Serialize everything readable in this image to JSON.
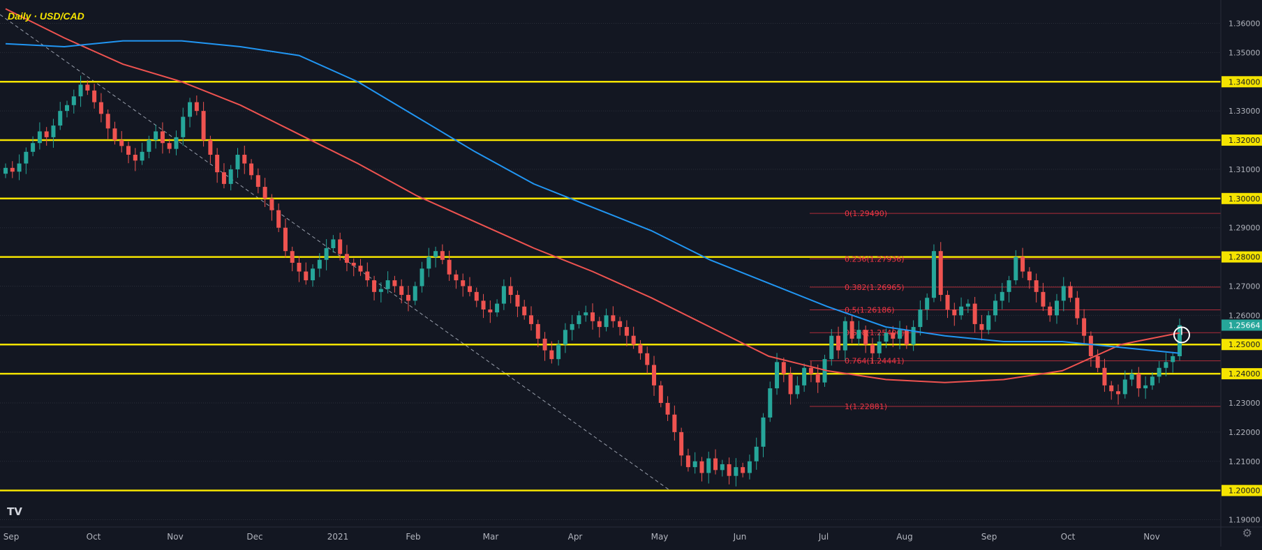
{
  "chart_title": "Daily · USD/CAD",
  "logo": "TV",
  "settings_icon": "gear-icon",
  "colors": {
    "background": "#131722",
    "up": "#26a69a",
    "down": "#ef5350",
    "ma_red": "#ef5350",
    "ma_blue": "#2196f3",
    "yellow": "#f5e400",
    "fib": "#f23645",
    "axis_text": "#b2b5be"
  },
  "chart_data": {
    "type": "candlestick",
    "title": "Daily · USD/CAD",
    "x_tick_labels": [
      "Sep",
      "Oct",
      "Nov",
      "Dec",
      "2021",
      "Feb",
      "Mar",
      "Apr",
      "May",
      "Jun",
      "Jul",
      "Aug",
      "Sep",
      "Oct",
      "Nov"
    ],
    "y_tick_labels": [
      "1.36000",
      "1.35000",
      "1.34000",
      "1.33000",
      "1.32000",
      "1.31000",
      "1.30000",
      "1.29000",
      "1.28000",
      "1.27000",
      "1.26000",
      "1.25000",
      "1.24000",
      "1.23000",
      "1.22000",
      "1.21000",
      "1.20000",
      "1.19000"
    ],
    "ylim": [
      1.1875,
      1.368
    ],
    "current_price": "1.25664",
    "major_levels": [
      1.34,
      1.32,
      1.3,
      1.28,
      1.25,
      1.24,
      1.2
    ],
    "fibonacci": [
      {
        "label": "0(1.29490)",
        "value": 1.2949
      },
      {
        "label": "0.236(1.27936)",
        "value": 1.27936
      },
      {
        "label": "0.382(1.26965)",
        "value": 1.26965
      },
      {
        "label": "0.5(1.26186)",
        "value": 1.26186
      },
      {
        "label": "0.618(1.25406)",
        "value": 1.25406
      },
      {
        "label": "0.764(1.24441)",
        "value": 1.24441
      },
      {
        "label": "1(1.22881)",
        "value": 1.22881
      }
    ],
    "moving_averages": [
      {
        "color": "red",
        "values": [
          1.365,
          1.355,
          1.346,
          1.34,
          1.332,
          1.322,
          1.312,
          1.301,
          1.292,
          1.283,
          1.275,
          1.266,
          1.256,
          1.246,
          1.241,
          1.238,
          1.237,
          1.238,
          1.241,
          1.25,
          1.254
        ]
      },
      {
        "color": "blue",
        "values": [
          1.353,
          1.352,
          1.354,
          1.354,
          1.352,
          1.349,
          1.34,
          1.328,
          1.316,
          1.305,
          1.297,
          1.289,
          1.279,
          1.271,
          1.263,
          1.256,
          1.253,
          1.251,
          1.251,
          1.249,
          1.247
        ]
      }
    ],
    "series": [
      {
        "values": [
          1.3105,
          1.3092,
          1.312,
          1.316,
          1.319,
          1.323,
          1.321,
          1.325,
          1.33,
          1.332,
          1.335,
          1.339,
          1.337,
          1.333,
          1.329,
          1.324,
          1.32,
          1.318,
          1.315,
          1.313,
          1.316,
          1.32,
          1.323,
          1.319,
          1.317,
          1.321,
          1.328,
          1.333,
          1.33,
          1.32,
          1.315,
          1.309,
          1.305,
          1.31,
          1.315,
          1.312,
          1.308,
          1.304,
          1.3,
          1.296,
          1.29,
          1.282,
          1.278,
          1.275,
          1.272,
          1.276,
          1.279,
          1.283,
          1.286,
          1.281,
          1.278,
          1.277,
          1.275,
          1.272,
          1.268,
          1.269,
          1.272,
          1.27,
          1.267,
          1.265,
          1.27,
          1.276,
          1.28,
          1.282,
          1.279,
          1.274,
          1.272,
          1.27,
          1.268,
          1.265,
          1.262,
          1.261,
          1.264,
          1.27,
          1.267,
          1.263,
          1.26,
          1.257,
          1.252,
          1.248,
          1.245,
          1.25,
          1.255,
          1.257,
          1.26,
          1.261,
          1.258,
          1.256,
          1.26,
          1.258,
          1.256,
          1.253,
          1.25,
          1.247,
          1.243,
          1.236,
          1.23,
          1.226,
          1.22,
          1.212,
          1.208,
          1.21,
          1.206,
          1.211,
          1.207,
          1.209,
          1.205,
          1.208,
          1.206,
          1.21,
          1.215,
          1.225,
          1.235,
          1.244,
          1.24,
          1.233,
          1.236,
          1.242,
          1.24,
          1.237,
          1.245,
          1.253,
          1.248,
          1.258,
          1.252,
          1.255,
          1.25,
          1.247,
          1.251,
          1.254,
          1.252,
          1.255,
          1.25,
          1.256,
          1.262,
          1.266,
          1.282,
          1.267,
          1.262,
          1.26,
          1.263,
          1.264,
          1.257,
          1.255,
          1.26,
          1.265,
          1.268,
          1.272,
          1.28,
          1.275,
          1.272,
          1.268,
          1.263,
          1.26,
          1.265,
          1.27,
          1.266,
          1.259,
          1.253,
          1.246,
          1.242,
          1.236,
          1.234,
          1.233,
          1.238,
          1.24,
          1.235,
          1.236,
          1.239,
          1.242,
          1.244,
          1.246,
          1.2566
        ]
      }
    ]
  }
}
